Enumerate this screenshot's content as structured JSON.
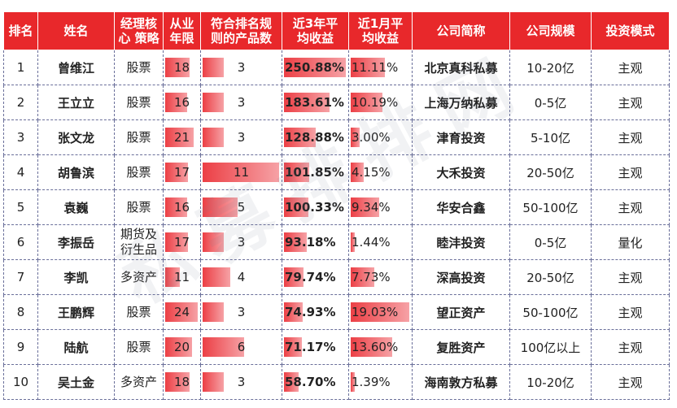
{
  "headers": {
    "rank": "排名",
    "name": "姓名",
    "strategy": "经理核\n心 策略",
    "years": "从业\n年限",
    "products": "符合排名规\n则的产品数",
    "r3y": "近3年平\n均收益",
    "r1m": "近1月平\n均收益",
    "company": "公司简称",
    "scale": "公司规模",
    "mode": "投资模式"
  },
  "rows": [
    {
      "rank": "1",
      "name": "曾维江",
      "strategy": "股票",
      "years": 18,
      "products": 3,
      "r3y": 250.88,
      "r3y_label": "250.88%",
      "r1m": 11.11,
      "r1m_label": "11.11%",
      "company": "北京真科私募",
      "scale": "10-20亿",
      "mode": "主观"
    },
    {
      "rank": "2",
      "name": "王立立",
      "strategy": "股票",
      "years": 16,
      "products": 3,
      "r3y": 183.61,
      "r3y_label": "183.61%",
      "r1m": 10.19,
      "r1m_label": "10.19%",
      "company": "上海万纳私募",
      "scale": "0-5亿",
      "mode": "主观"
    },
    {
      "rank": "3",
      "name": "张文龙",
      "strategy": "股票",
      "years": 21,
      "products": 3,
      "r3y": 128.88,
      "r3y_label": "128.88%",
      "r1m": 3.0,
      "r1m_label": "3.00%",
      "company": "津育投资",
      "scale": "5-10亿",
      "mode": "主观"
    },
    {
      "rank": "4",
      "name": "胡鲁滨",
      "strategy": "股票",
      "years": 17,
      "products": 11,
      "r3y": 101.85,
      "r3y_label": "101.85%",
      "r1m": 4.15,
      "r1m_label": "4.15%",
      "company": "大禾投资",
      "scale": "20-50亿",
      "mode": "主观"
    },
    {
      "rank": "5",
      "name": "袁巍",
      "strategy": "股票",
      "years": 16,
      "products": 5,
      "r3y": 100.33,
      "r3y_label": "100.33%",
      "r1m": 9.34,
      "r1m_label": "9.34%",
      "company": "华安合鑫",
      "scale": "50-100亿",
      "mode": "主观"
    },
    {
      "rank": "6",
      "name": "李振岳",
      "strategy": "期货及\n衍生品",
      "years": 17,
      "products": 3,
      "r3y": 93.18,
      "r3y_label": "93.18%",
      "r1m": 1.44,
      "r1m_label": "1.44%",
      "company": "睦沣投资",
      "scale": "0-5亿",
      "mode": "量化"
    },
    {
      "rank": "7",
      "name": "李凯",
      "strategy": "多资产",
      "years": 11,
      "products": 4,
      "r3y": 79.74,
      "r3y_label": "79.74%",
      "r1m": 7.73,
      "r1m_label": "7.73%",
      "company": "深高投资",
      "scale": "20-50亿",
      "mode": "主观"
    },
    {
      "rank": "8",
      "name": "王鹏辉",
      "strategy": "股票",
      "years": 24,
      "products": 3,
      "r3y": 74.93,
      "r3y_label": "74.93%",
      "r1m": 19.03,
      "r1m_label": "19.03%",
      "company": "望正资产",
      "scale": "50-100亿",
      "mode": "主观"
    },
    {
      "rank": "9",
      "name": "陆航",
      "strategy": "股票",
      "years": 20,
      "products": 6,
      "r3y": 71.17,
      "r3y_label": "71.17%",
      "r1m": 13.6,
      "r1m_label": "13.60%",
      "company": "复胜资产",
      "scale": "100亿以上",
      "mode": "主观"
    },
    {
      "rank": "10",
      "name": "吴土金",
      "strategy": "多资产",
      "years": 18,
      "products": 3,
      "r3y": 58.7,
      "r3y_label": "58.70%",
      "r1m": 1.39,
      "r1m_label": "1.39%",
      "company": "海南敦方私募",
      "scale": "10-20亿",
      "mode": "主观"
    }
  ],
  "colors": {
    "header_bg": "#e8282b",
    "bar_start": "#ec3f45",
    "bar_end": "#f6a2a6"
  },
  "watermark": "私募排排网"
}
